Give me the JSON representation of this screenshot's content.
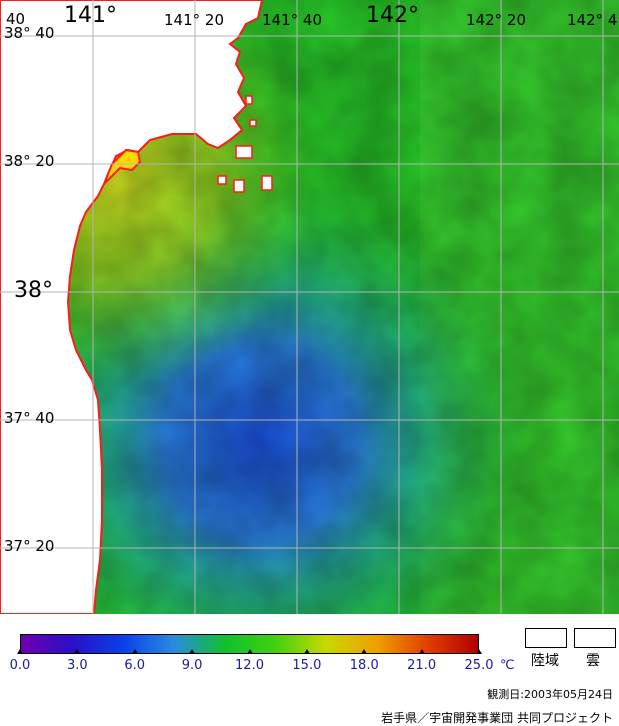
{
  "map": {
    "lat_labels": [
      {
        "text": "38° 40",
        "class": "lat-minor"
      },
      {
        "text": "38° 20",
        "class": "lat-minor"
      },
      {
        "text": "38°",
        "class": "lat-major"
      },
      {
        "text": "37° 40",
        "class": "lat-minor"
      },
      {
        "text": "37° 20",
        "class": "lat-minor"
      }
    ],
    "lon_labels": [
      {
        "text": "40",
        "class": "lon-minor"
      },
      {
        "text": "141°",
        "class": "lon-major"
      },
      {
        "text": "141° 20",
        "class": "lon-minor"
      },
      {
        "text": "141° 40",
        "class": "lon-minor"
      },
      {
        "text": "142°",
        "class": "lon-major"
      },
      {
        "text": "142° 20",
        "class": "lon-minor"
      },
      {
        "text": "142° 4",
        "class": "lon-minor"
      }
    ],
    "colors": {
      "coastline": "#ff1a1a",
      "land": "#ffffff",
      "grid": "#b4b4b4"
    }
  },
  "colorbar": {
    "ticks": [
      "0.0",
      "3.0",
      "6.0",
      "9.0",
      "12.0",
      "15.0",
      "18.0",
      "21.0",
      "25.0"
    ],
    "unit": "℃",
    "stops": [
      "#7000b0",
      "#2a10c8",
      "#0a40e8",
      "#2a8ae0",
      "#10c030",
      "#40d010",
      "#c8d800",
      "#f0a000",
      "#e04000",
      "#b00000"
    ]
  },
  "legend": {
    "land": "陸域",
    "cloud": "雲"
  },
  "obs_date": "観測日:2003年05月24日",
  "credit": "岩手県／宇宙開発事業団 共同プロジェクト"
}
